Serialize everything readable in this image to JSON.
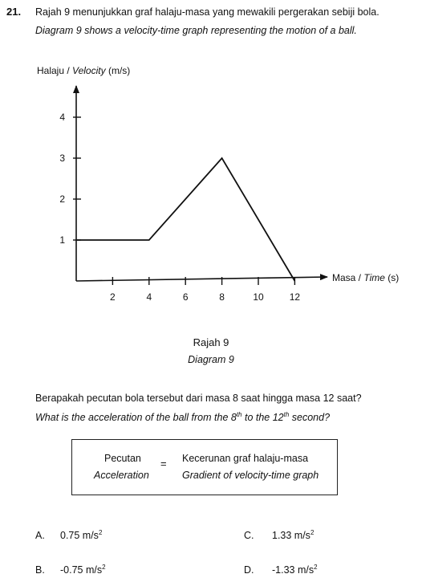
{
  "question": {
    "number": "21.",
    "line_malay": "Rajah 9 menunjukkan graf halaju-masa yang mewakili pergerakan sebiji bola.",
    "line_english": "Diagram 9 shows a velocity-time graph representing the motion of a ball."
  },
  "chart_data": {
    "type": "line",
    "ylabel_malay": "Halaju /",
    "ylabel_english": "Velocity",
    "ylabel_unit": "(m/s)",
    "xlabel_malay": "Masa /",
    "xlabel_english": "Time",
    "xlabel_unit": "(s)",
    "x_ticks": [
      2,
      4,
      6,
      8,
      10,
      12
    ],
    "y_ticks": [
      1,
      2,
      3,
      4
    ],
    "xlim": [
      0,
      13
    ],
    "ylim": [
      0,
      4.8
    ],
    "series": [
      {
        "x": [
          0,
          4,
          8,
          12
        ],
        "y": [
          1,
          1,
          3,
          0
        ]
      }
    ]
  },
  "caption": {
    "malay": "Rajah 9",
    "english": "Diagram 9"
  },
  "prompt": {
    "malay": "Berapakah pecutan bola tersebut dari masa 8 saat hingga masa 12 saat?",
    "english_pre": "What is the acceleration of the ball from the 8",
    "english_sup1": "th",
    "english_mid": " to the 12",
    "english_sup2": "th",
    "english_post": " second?"
  },
  "formula": {
    "lhs_malay": "Pecutan",
    "lhs_english": "Acceleration",
    "equals": "=",
    "rhs_malay": "Kecerunan graf halaju-masa",
    "rhs_english": "Gradient of velocity-time graph"
  },
  "options": [
    {
      "letter": "A.",
      "value": "0.75 m/s",
      "sup": "2"
    },
    {
      "letter": "C.",
      "value": "1.33 m/s",
      "sup": "2"
    },
    {
      "letter": "B.",
      "value": "-0.75 m/s",
      "sup": "2"
    },
    {
      "letter": "D.",
      "value": "-1.33 m/s",
      "sup": "2"
    }
  ]
}
